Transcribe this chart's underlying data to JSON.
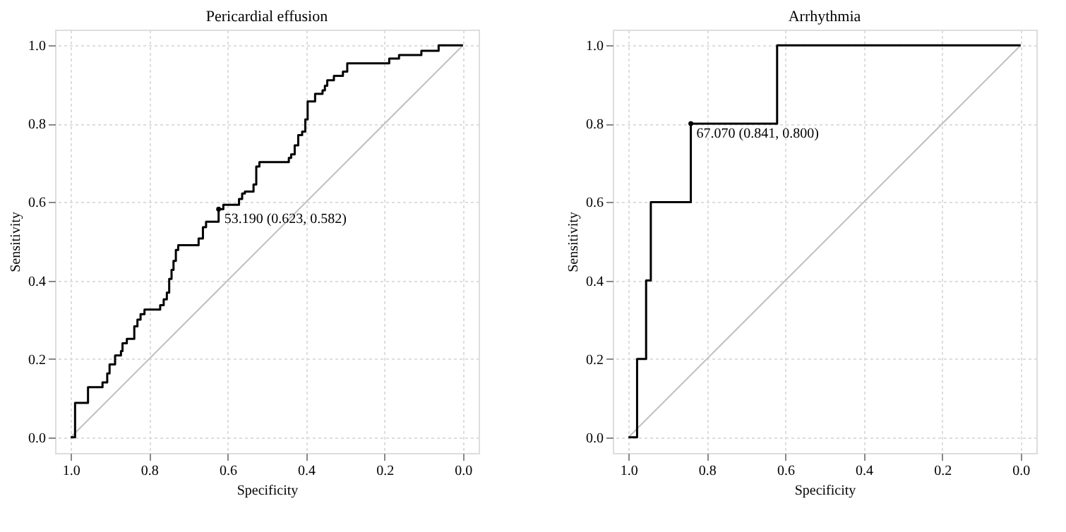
{
  "chart_data": [
    {
      "type": "line",
      "title": "Pericardial effusion",
      "xlabel": "Specificity",
      "ylabel": "Sensitivity",
      "xlim": [
        1.04,
        -0.04
      ],
      "ylim": [
        -0.04,
        1.04
      ],
      "xticks": [
        {
          "value": 1.0,
          "label": "1.0"
        },
        {
          "value": 0.8,
          "label": "0.8"
        },
        {
          "value": 0.6,
          "label": "0.6"
        },
        {
          "value": 0.4,
          "label": "0.4"
        },
        {
          "value": 0.2,
          "label": "0.2"
        },
        {
          "value": 0.0,
          "label": "0.0"
        }
      ],
      "yticks": [
        {
          "value": 0.0,
          "label": "0.0"
        },
        {
          "value": 0.2,
          "label": "0.2"
        },
        {
          "value": 0.4,
          "label": "0.4"
        },
        {
          "value": 0.6,
          "label": "0.6"
        },
        {
          "value": 0.8,
          "label": "0.8"
        },
        {
          "value": 1.0,
          "label": "1.0"
        }
      ],
      "grid": true,
      "marker": "none",
      "line_style": "solid",
      "series": [
        {
          "color": "#c0c0c0",
          "x": [
            1.0,
            0.0
          ],
          "values": [
            0.0,
            1.0
          ]
        },
        {
          "color": "#000000",
          "x": [
            1.0,
            0.989,
            0.989,
            0.956,
            0.956,
            0.919,
            0.919,
            0.907,
            0.907,
            0.901,
            0.901,
            0.887,
            0.887,
            0.872,
            0.872,
            0.868,
            0.868,
            0.857,
            0.857,
            0.838,
            0.838,
            0.83,
            0.83,
            0.822,
            0.822,
            0.812,
            0.812,
            0.772,
            0.772,
            0.763,
            0.763,
            0.755,
            0.755,
            0.749,
            0.749,
            0.743,
            0.743,
            0.738,
            0.738,
            0.732,
            0.732,
            0.726,
            0.726,
            0.674,
            0.674,
            0.663,
            0.663,
            0.655,
            0.655,
            0.623,
            0.623,
            0.611,
            0.611,
            0.571,
            0.571,
            0.563,
            0.563,
            0.556,
            0.556,
            0.534,
            0.534,
            0.527,
            0.527,
            0.519,
            0.519,
            0.444,
            0.444,
            0.438,
            0.438,
            0.429,
            0.429,
            0.42,
            0.42,
            0.41,
            0.41,
            0.402,
            0.402,
            0.396,
            0.396,
            0.377,
            0.377,
            0.358,
            0.358,
            0.352,
            0.352,
            0.346,
            0.346,
            0.329,
            0.329,
            0.306,
            0.306,
            0.295,
            0.295,
            0.188,
            0.188,
            0.163,
            0.163,
            0.106,
            0.106,
            0.062,
            0.062,
            0.0
          ],
          "values": [
            0.0,
            0.0,
            0.088,
            0.088,
            0.128,
            0.128,
            0.14,
            0.14,
            0.163,
            0.163,
            0.186,
            0.186,
            0.209,
            0.209,
            0.22,
            0.22,
            0.24,
            0.24,
            0.251,
            0.251,
            0.283,
            0.283,
            0.3,
            0.3,
            0.314,
            0.314,
            0.326,
            0.326,
            0.337,
            0.337,
            0.352,
            0.352,
            0.369,
            0.369,
            0.404,
            0.404,
            0.427,
            0.427,
            0.45,
            0.45,
            0.478,
            0.478,
            0.49,
            0.49,
            0.507,
            0.507,
            0.536,
            0.536,
            0.55,
            0.55,
            0.582,
            0.582,
            0.593,
            0.593,
            0.608,
            0.608,
            0.622,
            0.622,
            0.627,
            0.627,
            0.645,
            0.645,
            0.691,
            0.691,
            0.702,
            0.702,
            0.713,
            0.713,
            0.722,
            0.722,
            0.745,
            0.745,
            0.771,
            0.771,
            0.78,
            0.78,
            0.811,
            0.811,
            0.857,
            0.857,
            0.876,
            0.876,
            0.885,
            0.885,
            0.897,
            0.897,
            0.911,
            0.911,
            0.922,
            0.922,
            0.933,
            0.933,
            0.954,
            0.954,
            0.966,
            0.966,
            0.975,
            0.975,
            0.986,
            0.986,
            1.0,
            1.0
          ]
        }
      ],
      "annotations": [
        {
          "text": "53.190 (0.623, 0.582)",
          "x": 0.623,
          "y": 0.582
        }
      ]
    },
    {
      "type": "line",
      "title": "Arrhythmia",
      "xlabel": "Specificity",
      "ylabel": "Sensitivity",
      "xlim": [
        1.04,
        -0.04
      ],
      "ylim": [
        -0.04,
        1.04
      ],
      "xticks": [
        {
          "value": 1.0,
          "label": "1.0"
        },
        {
          "value": 0.8,
          "label": "0.8"
        },
        {
          "value": 0.6,
          "label": "0.6"
        },
        {
          "value": 0.4,
          "label": "0.4"
        },
        {
          "value": 0.2,
          "label": "0.2"
        },
        {
          "value": 0.0,
          "label": "0.0"
        }
      ],
      "yticks": [
        {
          "value": 0.0,
          "label": "0.0"
        },
        {
          "value": 0.2,
          "label": "0.2"
        },
        {
          "value": 0.4,
          "label": "0.4"
        },
        {
          "value": 0.6,
          "label": "0.6"
        },
        {
          "value": 0.8,
          "label": "0.8"
        },
        {
          "value": 1.0,
          "label": "1.0"
        }
      ],
      "grid": true,
      "marker": "none",
      "line_style": "solid",
      "series": [
        {
          "color": "#c0c0c0",
          "x": [
            1.0,
            0.0
          ],
          "values": [
            0.0,
            1.0
          ]
        },
        {
          "color": "#000000",
          "x": [
            1.0,
            0.978,
            0.978,
            0.955,
            0.955,
            0.943,
            0.943,
            0.841,
            0.841,
            0.621,
            0.621,
            0.0
          ],
          "values": [
            0.0,
            0.0,
            0.2,
            0.2,
            0.4,
            0.4,
            0.6,
            0.6,
            0.8,
            0.8,
            1.0,
            1.0
          ]
        }
      ],
      "annotations": [
        {
          "text": "67.070 (0.841, 0.800)",
          "x": 0.841,
          "y": 0.8
        }
      ]
    }
  ]
}
